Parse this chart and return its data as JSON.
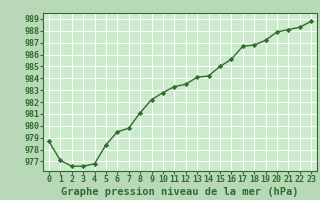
{
  "hours": [
    0,
    1,
    2,
    3,
    4,
    5,
    6,
    7,
    8,
    9,
    10,
    11,
    12,
    13,
    14,
    15,
    16,
    17,
    18,
    19,
    20,
    21,
    22,
    23
  ],
  "pressure": [
    978.7,
    977.1,
    976.6,
    976.6,
    976.8,
    978.4,
    979.5,
    979.8,
    981.1,
    982.2,
    982.8,
    983.3,
    983.5,
    984.1,
    984.2,
    985.0,
    985.6,
    986.7,
    986.8,
    987.2,
    987.9,
    988.1,
    988.3,
    988.8
  ],
  "line_color": "#2d6e2d",
  "marker": "D",
  "marker_size": 2.2,
  "bg_color": "#b8d8b8",
  "grid_color": "#ffffff",
  "plot_bg": "#cceacc",
  "ylim_min": 976.2,
  "ylim_max": 989.5,
  "xlim_min": -0.5,
  "xlim_max": 23.5,
  "ytick_min": 977,
  "ytick_max": 989,
  "xlabel": "Graphe pression niveau de la mer (hPa)",
  "xlabel_fontsize": 7.5,
  "tick_fontsize": 6.0,
  "line_width": 1.0
}
